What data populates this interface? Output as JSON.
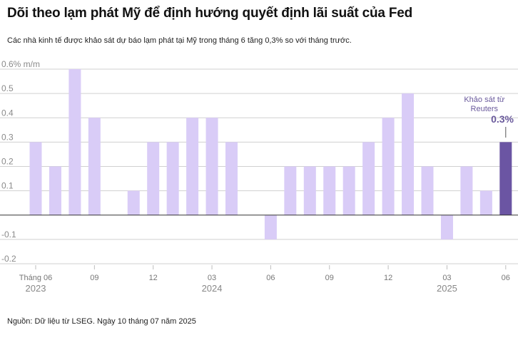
{
  "title": "Dõi theo lạm phát Mỹ để định hướng quyết định lãi suất của Fed",
  "subtitle": "Các nhà kinh tế được khảo sát dự báo lạm phát tại Mỹ trong tháng 6 tăng 0,3% so với tháng trước.",
  "source": "Nguồn: Dữ liệu từ LSEG. Ngày 10 tháng 07 năm 2025",
  "colors": {
    "bar": "#d9ccf7",
    "highlight": "#6b55a3",
    "grid": "#d0d0d0",
    "zero": "#333333",
    "annotation": "#6a5a9c"
  },
  "chart_data": {
    "type": "bar",
    "ylabel": "% m/m",
    "ylim": [
      -0.2,
      0.6
    ],
    "yticks": [
      "0.6% m/m",
      "0.5",
      "0.4",
      "0.3",
      "0.2",
      "0.1",
      "",
      "-0.1",
      "-0.2"
    ],
    "grid": true,
    "categories": [
      "2023-06",
      "2023-07",
      "2023-08",
      "2023-09",
      "2023-10",
      "2023-11",
      "2023-12",
      "2024-01",
      "2024-02",
      "2024-03",
      "2024-04",
      "2024-05",
      "2024-06",
      "2024-07",
      "2024-08",
      "2024-09",
      "2024-10",
      "2024-11",
      "2024-12",
      "2025-01",
      "2025-02",
      "2025-03",
      "2025-04",
      "2025-05",
      "2025-06"
    ],
    "values": [
      0.3,
      0.2,
      0.6,
      0.4,
      0.0,
      0.1,
      0.3,
      0.3,
      0.4,
      0.4,
      0.3,
      0.0,
      -0.1,
      0.2,
      0.2,
      0.2,
      0.2,
      0.3,
      0.4,
      0.5,
      0.2,
      -0.1,
      0.2,
      0.1,
      0.3
    ],
    "highlight_index": 24,
    "x_tick_labels": [
      {
        "index": 0,
        "label": "Tháng 06",
        "year": "2023"
      },
      {
        "index": 3,
        "label": "09",
        "year": ""
      },
      {
        "index": 6,
        "label": "12",
        "year": ""
      },
      {
        "index": 9,
        "label": "03",
        "year": "2024"
      },
      {
        "index": 12,
        "label": "06",
        "year": ""
      },
      {
        "index": 15,
        "label": "09",
        "year": ""
      },
      {
        "index": 18,
        "label": "12",
        "year": ""
      },
      {
        "index": 21,
        "label": "03",
        "year": "2025"
      },
      {
        "index": 24,
        "label": "06",
        "year": ""
      }
    ],
    "annotation": {
      "index": 24,
      "text_lines": [
        "Khảo sát từ",
        "Reuters"
      ],
      "value_label": "0.3%"
    }
  }
}
